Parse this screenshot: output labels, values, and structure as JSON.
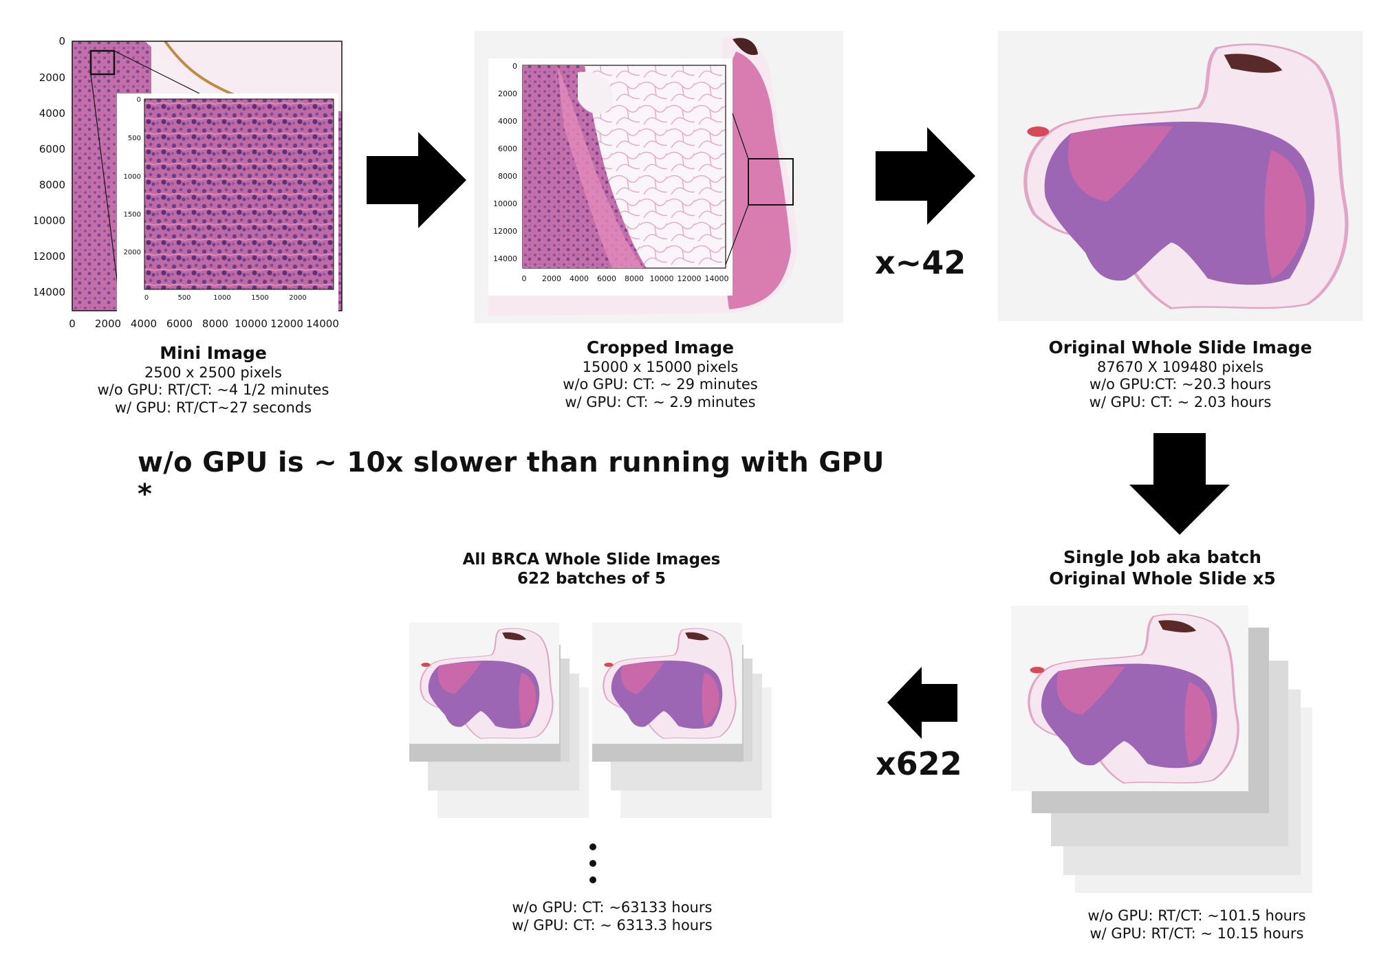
{
  "mini": {
    "title": "Mini Image",
    "size": "2500 x 2500 pixels",
    "cpu": "w/o GPU: RT/CT: ~4 1/2 minutes",
    "gpu": "w/ GPU: RT/CT~27 seconds",
    "axis_ticks": [
      "0",
      "2000",
      "4000",
      "6000",
      "8000",
      "10000",
      "12000",
      "14000"
    ],
    "inset_y_ticks": [
      "0",
      "500",
      "1000",
      "1500",
      "2000"
    ],
    "inset_x_ticks": [
      "0",
      "500",
      "1000",
      "1500",
      "2000"
    ]
  },
  "cropped": {
    "title": "Cropped Image",
    "size": "15000 x 15000 pixels",
    "cpu": "w/o GPU: CT: ~ 29 minutes",
    "gpu": "w/ GPU: CT: ~ 2.9 minutes",
    "axis_ticks": [
      "0",
      "2000",
      "4000",
      "6000",
      "8000",
      "10000",
      "12000",
      "14000"
    ]
  },
  "original": {
    "title": "Original Whole Slide Image",
    "size": "87670 X 109480 pixels",
    "cpu": "w/o GPU:CT: ~20.3 hours",
    "gpu": "w/ GPU: CT: ~ 2.03 hours"
  },
  "multiplier_42": "x~42",
  "headline": "w/o GPU is ~ 10x slower than running with GPU *",
  "batch": {
    "title_line1": "Single Job aka batch",
    "title_line2": "Original Whole Slide x5",
    "cpu": "w/o GPU: RT/CT: ~101.5 hours",
    "gpu": "w/ GPU: RT/CT: ~ 10.15 hours"
  },
  "multiplier_622": "x622",
  "all": {
    "title_line1": "All BRCA Whole Slide Images",
    "title_line2": "622 batches of 5",
    "cpu": "w/o GPU: CT: ~63133 hours",
    "gpu": "w/ GPU: CT: ~ 6313.3 hours"
  },
  "colors": {
    "tissue_pink": "#d46aa6",
    "tissue_purple": "#9a62b0",
    "arrow": "#000000",
    "stack_gray": "#d9d9d9"
  }
}
